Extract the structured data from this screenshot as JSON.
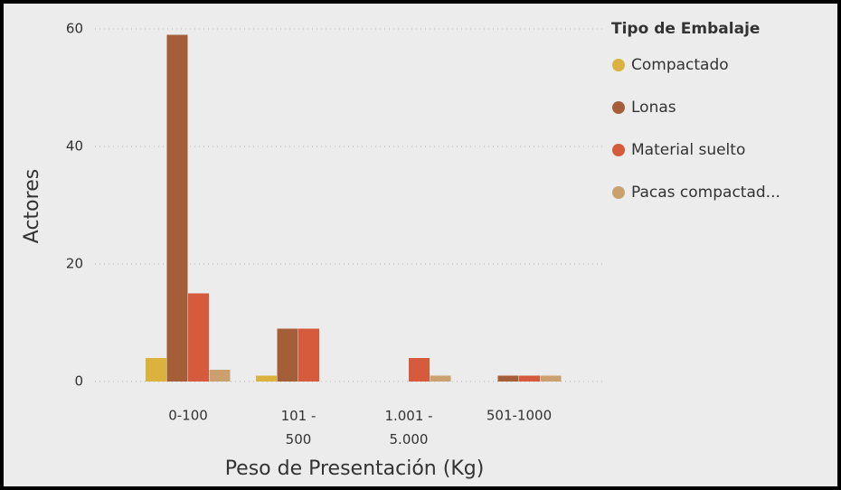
{
  "chart_data": {
    "type": "bar",
    "x_label": "Peso de Presentación (Kg)",
    "y_label": "Actores",
    "legend_title": "Tipo de Embalaje",
    "legend": "right",
    "grid": true,
    "categories": [
      "0-100",
      "101 - 500",
      "1.001 - 5.000",
      "501-1000"
    ],
    "series": [
      {
        "name": "Compactado",
        "color": "#dcb23e",
        "values": [
          4,
          1,
          0,
          0
        ]
      },
      {
        "name": "Lonas",
        "color": "#a55f38",
        "values": [
          59,
          9,
          0,
          1
        ]
      },
      {
        "name": "Material suelto",
        "color": "#d65a3c",
        "values": [
          15,
          9,
          4,
          1
        ]
      },
      {
        "name": "Pacas compactad...",
        "color": "#c9a06e",
        "values": [
          2,
          0,
          1,
          1
        ]
      }
    ],
    "ylim": [
      0,
      60
    ],
    "yticks": [
      0,
      20,
      40,
      60
    ]
  }
}
